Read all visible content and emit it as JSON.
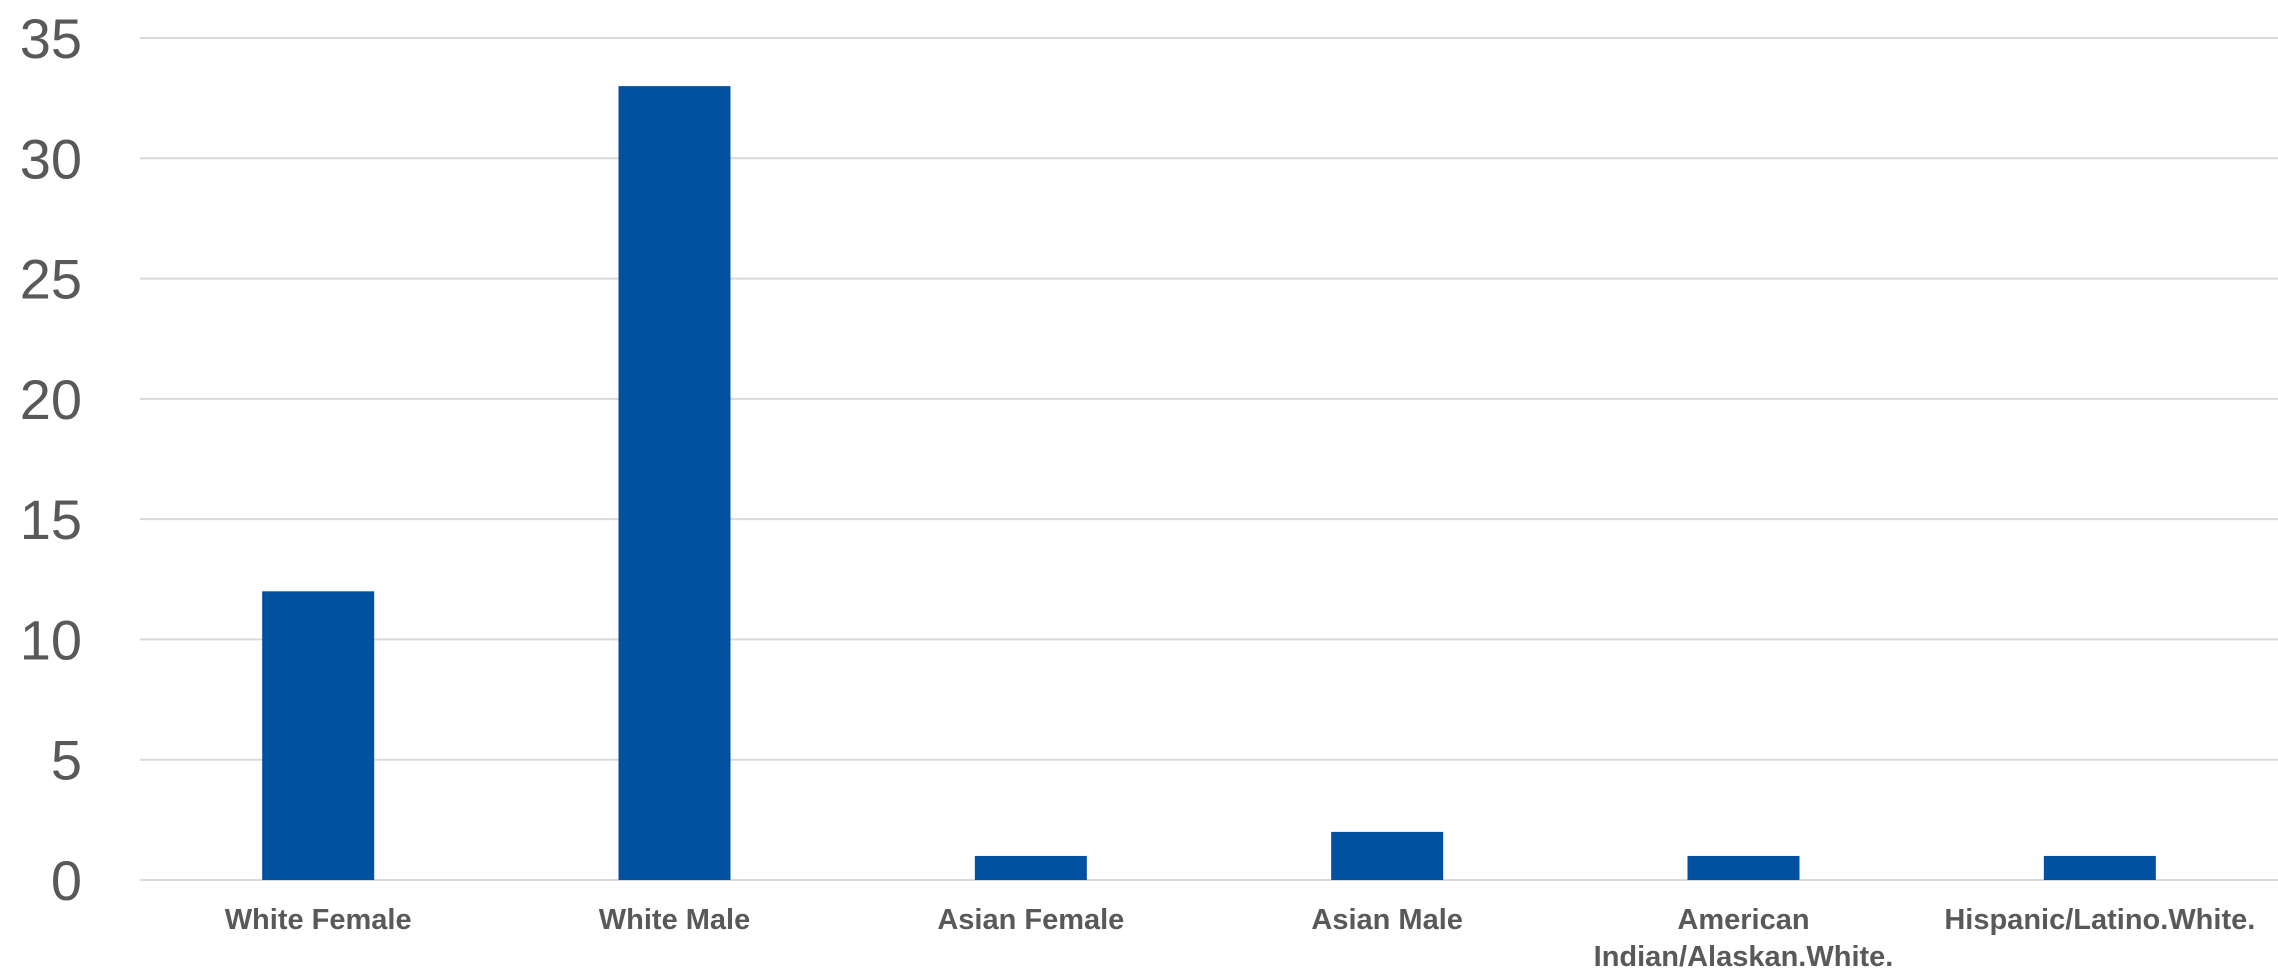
{
  "chart_data": {
    "type": "bar",
    "categories": [
      [
        "White Female"
      ],
      [
        "White Male"
      ],
      [
        "Asian Female"
      ],
      [
        "Asian Male"
      ],
      [
        "American",
        "Indian/Alaskan.White."
      ],
      [
        "Hispanic/Latino.White."
      ]
    ],
    "values": [
      12,
      33,
      1,
      2,
      1,
      1
    ],
    "ylim": [
      0,
      35
    ],
    "yticks": [
      "0",
      "5",
      "10",
      "15",
      "20",
      "25",
      "30",
      "35"
    ],
    "grid": true,
    "legend": "none",
    "bar_color": "#0052a0"
  }
}
